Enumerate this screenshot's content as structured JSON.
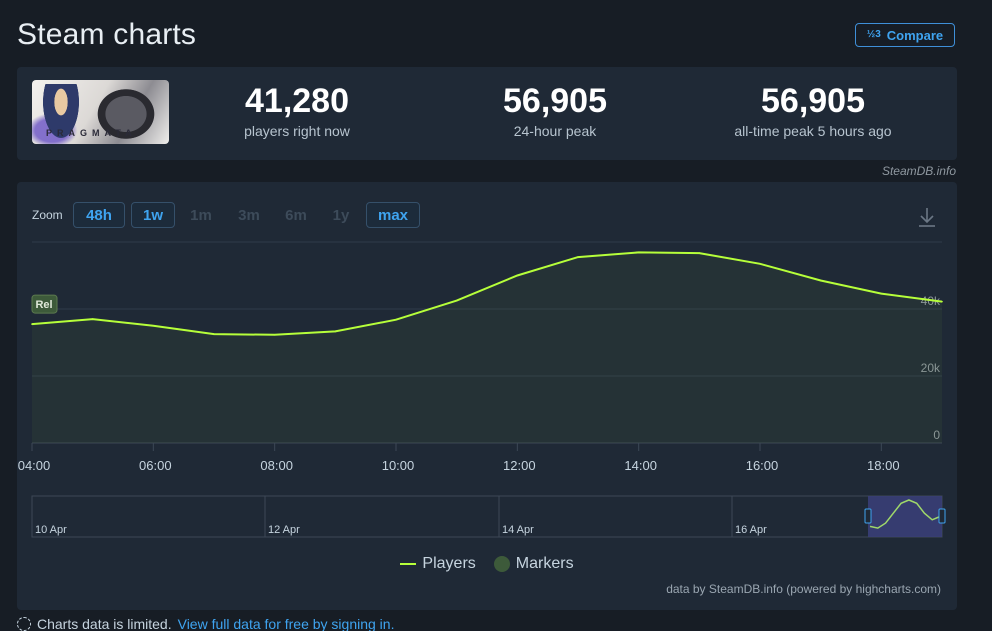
{
  "page": {
    "title": "Steam charts",
    "compare_label": "Compare",
    "compare_icon_text": "½3"
  },
  "stats": {
    "game_logo_text": "PRAGMATA",
    "current": {
      "value": "41,280",
      "label": "players right now"
    },
    "peak24": {
      "value": "56,905",
      "label": "24-hour peak"
    },
    "alltime": {
      "value": "56,905",
      "label": "all-time peak 5 hours ago"
    },
    "source_link": "SteamDB.info"
  },
  "zoom": {
    "label": "Zoom",
    "options": [
      {
        "label": "48h",
        "state": "active"
      },
      {
        "label": "1w",
        "state": "active"
      },
      {
        "label": "1m",
        "state": "disabled"
      },
      {
        "label": "3m",
        "state": "disabled"
      },
      {
        "label": "6m",
        "state": "disabled"
      },
      {
        "label": "1y",
        "state": "disabled"
      },
      {
        "label": "max",
        "state": "active"
      }
    ]
  },
  "chart_data": {
    "type": "area",
    "x_hours": [
      4,
      5,
      6,
      7,
      8,
      9,
      10,
      11,
      12,
      13,
      14,
      15,
      16,
      17,
      18,
      19
    ],
    "x_tick_labels": [
      "04:00",
      "06:00",
      "08:00",
      "10:00",
      "12:00",
      "14:00",
      "16:00",
      "18:00"
    ],
    "x_tick_hours": [
      4,
      6,
      8,
      10,
      12,
      14,
      16,
      18
    ],
    "y_ticks": [
      0,
      20000,
      40000
    ],
    "y_tick_labels": [
      "0",
      "20k",
      "40k"
    ],
    "ylim": [
      0,
      60000
    ],
    "xlim": [
      4,
      19
    ],
    "series": [
      {
        "name": "Players",
        "color": "#b6ff3a",
        "values": [
          35500,
          37000,
          35000,
          32500,
          32300,
          33300,
          36800,
          42500,
          50000,
          55500,
          56905,
          56700,
          53500,
          48500,
          44600,
          42200
        ]
      }
    ],
    "marker_label": "Rel",
    "marker_hour": 4,
    "navigator": {
      "date_labels": [
        "10 Apr",
        "12 Apr",
        "14 Apr",
        "16 Apr"
      ],
      "spark_values": [
        0.2,
        0.15,
        0.3,
        0.6,
        0.9,
        1.0,
        0.9,
        0.6,
        0.4,
        0.5
      ]
    },
    "legend_placement": "bottom-center",
    "grid": true
  },
  "legend": {
    "players_label": "Players",
    "markers_label": "Markers"
  },
  "credits": "data by SteamDB.info (powered by highcharts.com)",
  "footer": {
    "text": "Charts data is limited.",
    "link": "View full data for free by signing in."
  },
  "colors": {
    "background": "#171d25",
    "panel": "#1f2936",
    "accent": "#3fa4f0",
    "series": "#b6ff3a",
    "marker": "#3d5a3a"
  }
}
